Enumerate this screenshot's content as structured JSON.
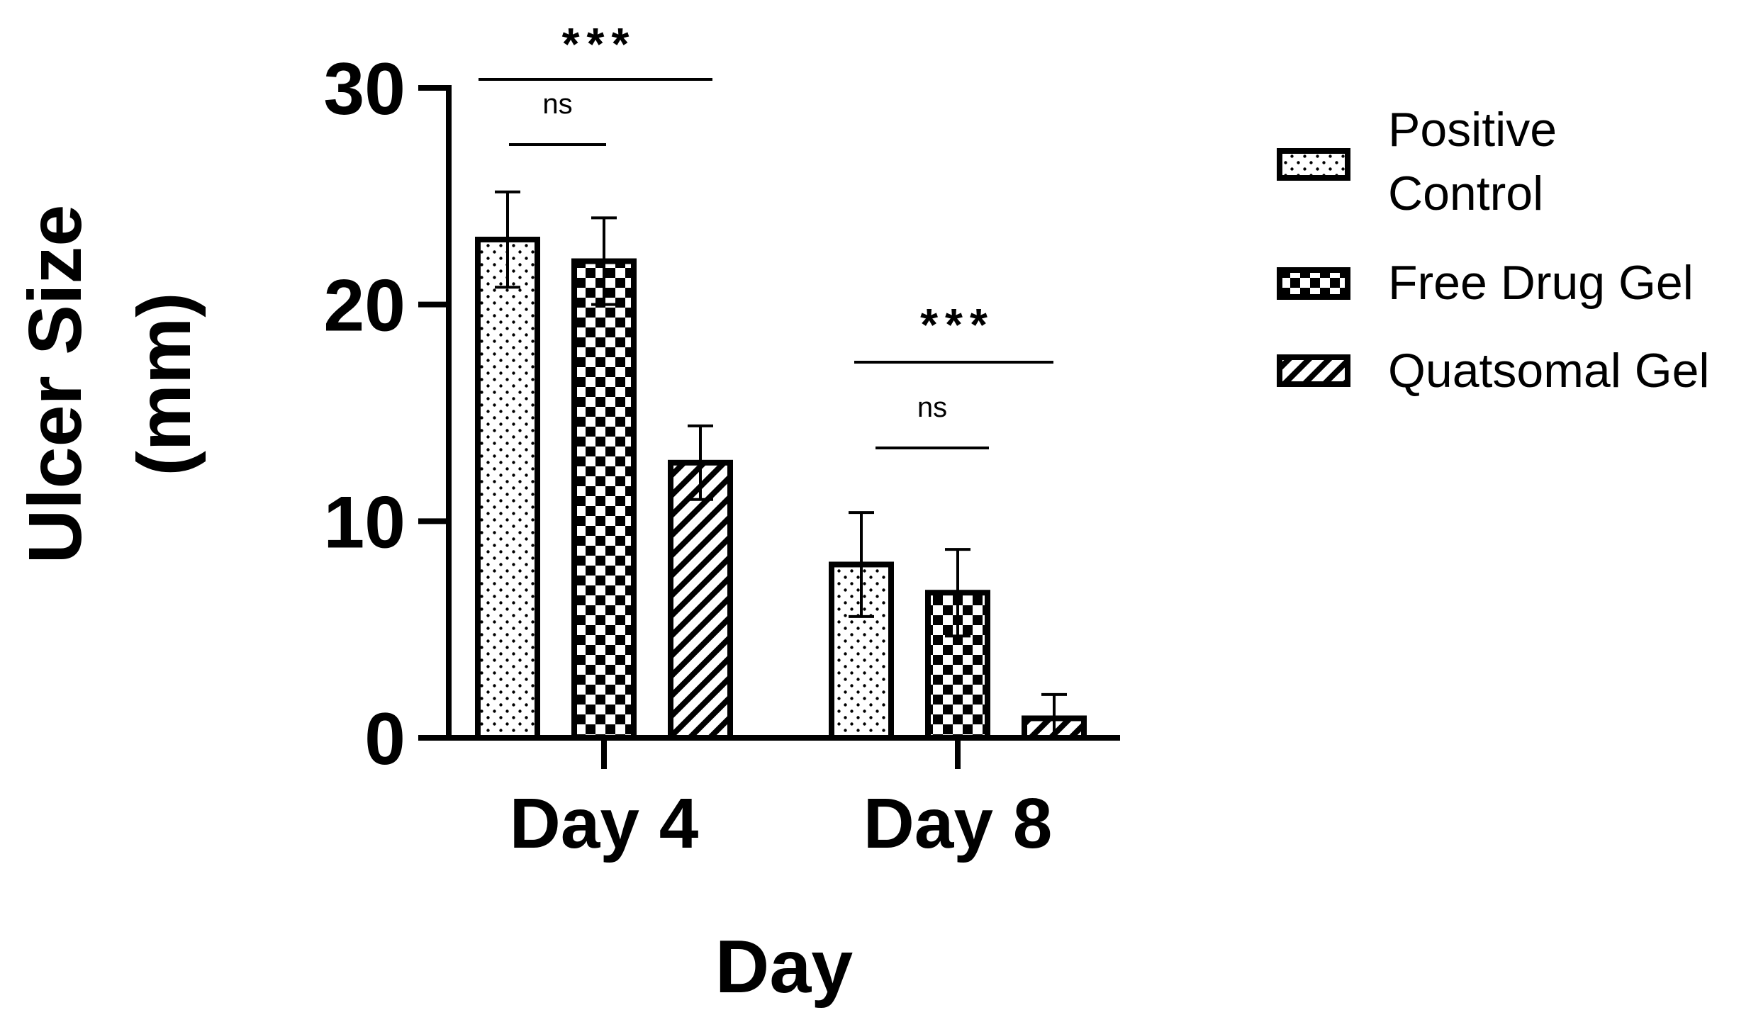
{
  "chart_data": {
    "type": "bar",
    "xlabel": "Day",
    "ylabel_lines": [
      "Ulcer Size",
      "(mm)"
    ],
    "categories": [
      "Day 4",
      "Day 8"
    ],
    "ylim": [
      0,
      30
    ],
    "yticks": [
      0,
      10,
      20,
      30
    ],
    "series": [
      {
        "name": "Positive Control",
        "name_lines": [
          "Positive",
          "Control"
        ],
        "pattern": "dots",
        "values": [
          23.0,
          8.0
        ],
        "errors": [
          2.2,
          2.4
        ]
      },
      {
        "name": "Free Drug Gel",
        "name_lines": [
          "Free Drug Gel"
        ],
        "pattern": "checker",
        "values": [
          22.0,
          6.7
        ],
        "errors": [
          2.0,
          2.0
        ]
      },
      {
        "name": "Quatsomal Gel",
        "name_lines": [
          "Quatsomal Gel"
        ],
        "pattern": "hatch",
        "values": [
          12.7,
          0.9
        ],
        "errors": [
          1.7,
          1.1
        ]
      }
    ],
    "significance": [
      {
        "category": "Day 4",
        "label": "***",
        "from_series": 0,
        "to_series": 2
      },
      {
        "category": "Day 4",
        "label": "ns",
        "from_series": 0,
        "to_series": 1
      },
      {
        "category": "Day 8",
        "label": "***",
        "from_series": 0,
        "to_series": 2
      },
      {
        "category": "Day 8",
        "label": "ns",
        "from_series": 0,
        "to_series": 1
      }
    ],
    "legend": "right",
    "grid": false
  }
}
